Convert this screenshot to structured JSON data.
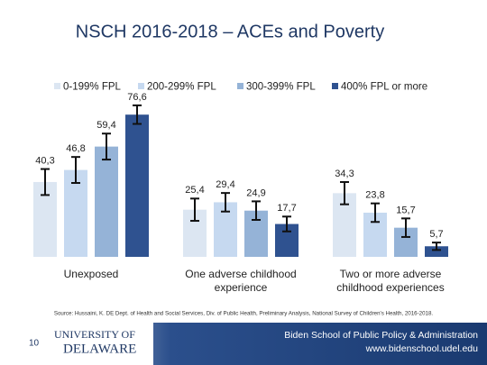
{
  "chart_data": {
    "type": "bar",
    "title": "NSCH 2016-2018 – ACEs and Poverty",
    "categories": [
      "Unexposed",
      "One adverse childhood experience",
      "Two or more adverse childhood experiences"
    ],
    "series": [
      {
        "name": "0-199% FPL",
        "color": "#dce6f2",
        "values": [
          40.3,
          25.4,
          34.3
        ],
        "value_labels": [
          "40,3",
          "25,4",
          "34,3"
        ],
        "errors": [
          7,
          6,
          6
        ]
      },
      {
        "name": "200-299% FPL",
        "color": "#c6d9f0",
        "values": [
          46.8,
          29.4,
          23.8
        ],
        "value_labels": [
          "46,8",
          "29,4",
          "23,8"
        ],
        "errors": [
          7,
          5,
          5
        ]
      },
      {
        "name": "300-399% FPL",
        "color": "#95b3d7",
        "values": [
          59.4,
          24.9,
          15.7
        ],
        "value_labels": [
          "59,4",
          "24,9",
          "15,7"
        ],
        "errors": [
          7,
          5,
          5
        ]
      },
      {
        "name": "400% FPL or more",
        "color": "#2f5290",
        "values": [
          76.6,
          17.7,
          5.7
        ],
        "value_labels": [
          "76,6",
          "17,7",
          "5,7"
        ],
        "errors": [
          5,
          4,
          2
        ]
      }
    ],
    "ylim": [
      0,
      100
    ],
    "legend": "top"
  },
  "source": "Source: Hussaini, K. DE Dept. of Health and Social Services, Div. of Public Health, Preliminary Analysis, National Survey of Children's Health, 2016-2018.",
  "footer": {
    "page": "10",
    "logo_top": "UNIVERSITY OF",
    "logo_bottom": "DELAWARE",
    "school": "Biden School of Public Policy & Administration",
    "url": "www.bidenschool.udel.edu"
  }
}
